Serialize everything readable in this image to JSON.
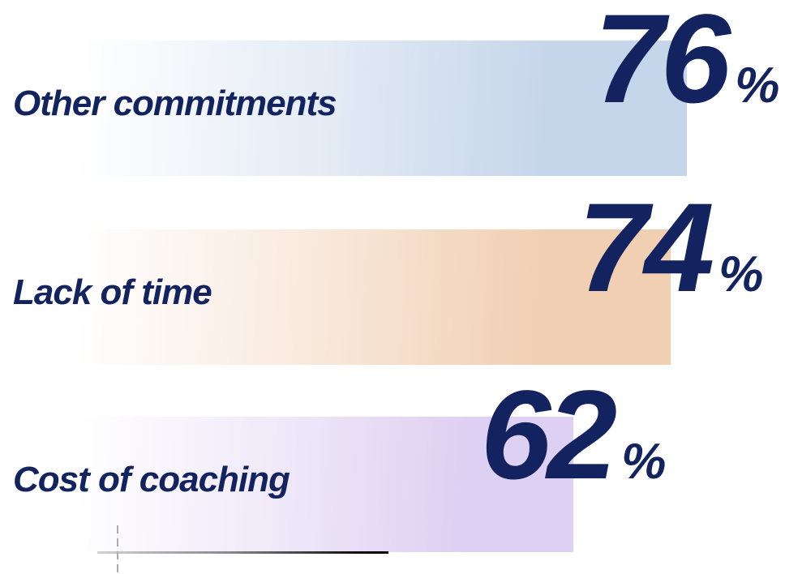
{
  "chart_data": {
    "type": "bar",
    "orientation": "horizontal",
    "title": "",
    "categories": [
      "Other commitments",
      "Lack of time",
      "Cost of coaching"
    ],
    "values": [
      76,
      74,
      62
    ],
    "value_suffix": "%",
    "xlim": [
      0,
      100
    ],
    "grid": false,
    "legend": false,
    "bar_colors": [
      "#c5d5ea",
      "#f1cfb3",
      "#ded0f2"
    ],
    "bar_gradient": "white-to-color, left-to-right",
    "text_color": "#13235f",
    "decor": {
      "baseline_rule_start_color": "#d2d2d2",
      "baseline_rule_end_color": "#000000",
      "dashed_tick_color": "#adadad"
    }
  }
}
